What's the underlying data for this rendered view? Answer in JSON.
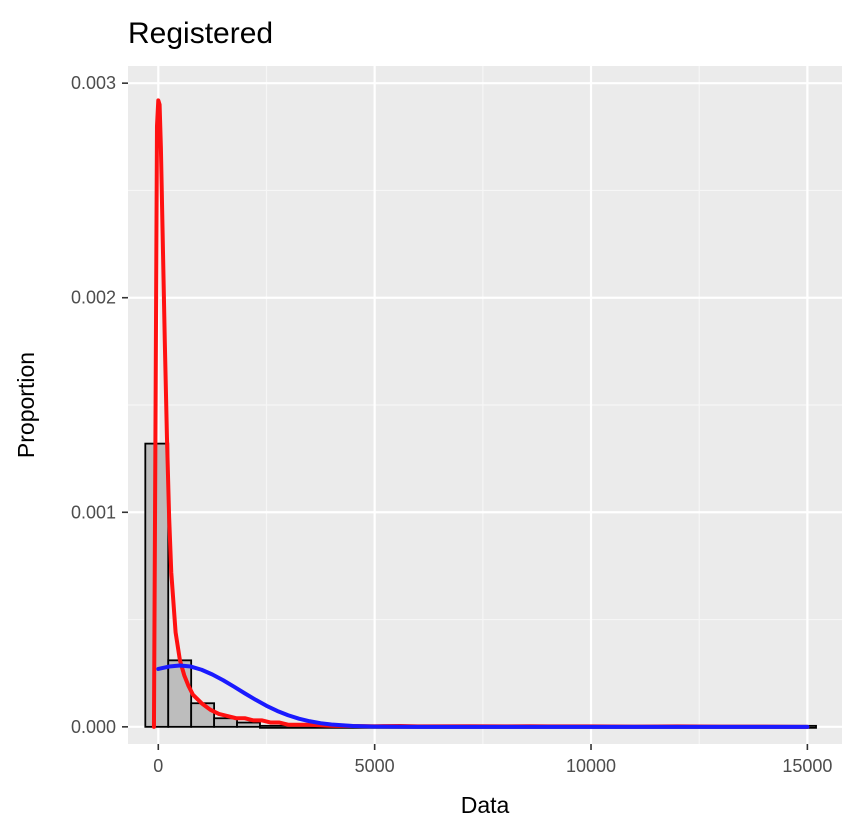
{
  "chart_data": {
    "type": "histogram",
    "title": "Registered",
    "xlabel": "Data",
    "ylabel": "Proportion",
    "xlim": [
      -700,
      15800
    ],
    "ylim": [
      -8e-05,
      0.00308
    ],
    "x_ticks": [
      {
        "value": 0,
        "label": "0"
      },
      {
        "value": 5000,
        "label": "5000"
      },
      {
        "value": 10000,
        "label": "10000"
      },
      {
        "value": 15000,
        "label": "15000"
      }
    ],
    "y_ticks": [
      {
        "value": 0.0,
        "label": "0.000"
      },
      {
        "value": 0.001,
        "label": "0.001"
      },
      {
        "value": 0.002,
        "label": "0.002"
      },
      {
        "value": 0.003,
        "label": "0.003"
      }
    ],
    "grid": true,
    "bins": [
      {
        "x0": -300,
        "x1": 230,
        "density": 0.00132
      },
      {
        "x0": 230,
        "x1": 760,
        "density": 0.00031
      },
      {
        "x0": 760,
        "x1": 1290,
        "density": 0.00011
      },
      {
        "x0": 1290,
        "x1": 1820,
        "density": 4e-05
      },
      {
        "x0": 1820,
        "x1": 2350,
        "density": 2e-05
      },
      {
        "x0": 2350,
        "x1": 15200,
        "density": 0.0
      }
    ],
    "series": [
      {
        "type": "line",
        "color": "#ff1111",
        "x": [
          -100,
          -30,
          0,
          30,
          60,
          100,
          150,
          200,
          250,
          300,
          400,
          500,
          600,
          700,
          800,
          900,
          1000,
          1200,
          1400,
          1600,
          1800,
          2000,
          2200,
          2400,
          2600,
          2800,
          3000,
          3500,
          4000,
          5000,
          5600,
          6000,
          7200,
          8000,
          8600,
          9000,
          10000,
          11000,
          12000,
          13000,
          14000,
          15000
        ],
        "y": [
          0.0,
          0.0028,
          0.00292,
          0.0029,
          0.0027,
          0.0023,
          0.0018,
          0.00135,
          0.00098,
          0.00072,
          0.00044,
          0.00031,
          0.00024,
          0.00019,
          0.00015,
          0.00013,
          0.00011,
          8e-05,
          6e-05,
          5e-05,
          4e-05,
          4e-05,
          3e-05,
          3e-05,
          2e-05,
          2e-05,
          1e-05,
          1e-05,
          5e-06,
          3e-06,
          4e-06,
          2e-06,
          3e-06,
          2e-06,
          3e-06,
          2e-06,
          2e-06,
          1e-06,
          2e-06,
          1e-06,
          1e-06,
          0.0
        ]
      },
      {
        "type": "line",
        "color": "#1a1aff",
        "x": [
          0,
          250,
          500,
          750,
          1000,
          1250,
          1500,
          1750,
          2000,
          2250,
          2500,
          2750,
          3000,
          3250,
          3500,
          3750,
          4000,
          4500,
          5000,
          6000,
          8000,
          10000,
          12000,
          15000
        ],
        "y": [
          0.00027,
          0.000281,
          0.000286,
          0.000281,
          0.000266,
          0.000244,
          0.000217,
          0.000187,
          0.000156,
          0.000126,
          9.8e-05,
          7.4e-05,
          5.4e-05,
          3.8e-05,
          2.6e-05,
          1.7e-05,
          1.1e-05,
          4e-06,
          1e-06,
          0.0,
          0.0,
          0.0,
          0.0,
          0.0
        ]
      }
    ]
  }
}
